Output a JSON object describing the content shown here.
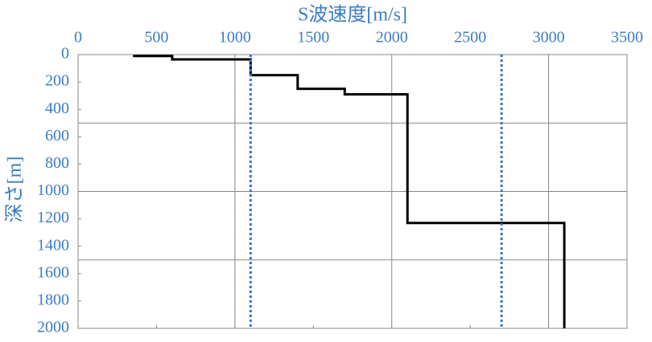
{
  "chart_data": {
    "type": "line",
    "xlabel": "S波速度[m/s]",
    "ylabel": "深さ[m]",
    "xlim": [
      0,
      3500
    ],
    "xticks": [
      0,
      500,
      1000,
      1500,
      2000,
      2500,
      3000,
      3500
    ],
    "ylim": [
      0,
      2000
    ],
    "yticks": [
      0,
      200,
      400,
      600,
      800,
      1000,
      1200,
      1400,
      1600,
      1800,
      2000
    ],
    "y_inverted": true,
    "x_axis_position": "top",
    "xgrid": [
      1000,
      2000,
      3000
    ],
    "ygrid": [
      500,
      1000,
      1500
    ],
    "series": [
      {
        "color": "#000000",
        "dash": false,
        "x": [
          350,
          600,
          600,
          1100,
          1100,
          1400,
          1400,
          1700,
          1700,
          2100,
          2100,
          3100,
          3100
        ],
        "y": [
          10,
          10,
          35,
          35,
          150,
          150,
          250,
          250,
          290,
          290,
          1230,
          1230,
          2000
        ]
      },
      {
        "color": "#3a6fd8",
        "dash": true,
        "x": [
          1100,
          1100
        ],
        "y": [
          0,
          2000
        ]
      },
      {
        "color": "#3a6fd8",
        "dash": true,
        "x": [
          2700,
          2700
        ],
        "y": [
          0,
          2000
        ]
      }
    ]
  }
}
